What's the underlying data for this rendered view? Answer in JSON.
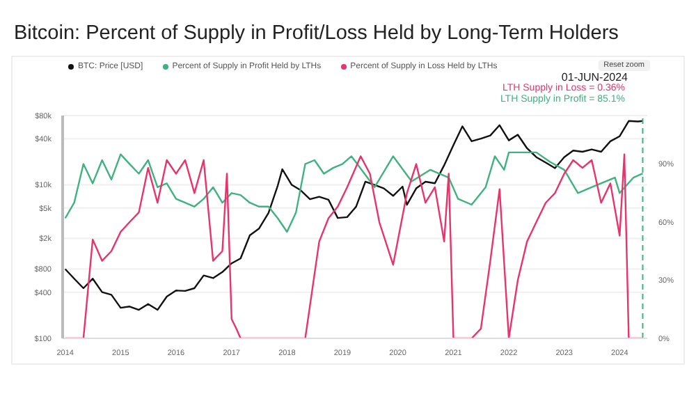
{
  "chart_data": {
    "type": "line",
    "title": "Bitcoin: Percent of Supply in Profit/Loss Held by Long-Term Holders",
    "xlim": [
      "2013-12-15",
      "2024-07-01"
    ],
    "xticks": [
      "2014",
      "2015",
      "2016",
      "2017",
      "2018",
      "2019",
      "2020",
      "2021",
      "2022",
      "2023",
      "2024"
    ],
    "ylim": [
      100,
      80000
    ],
    "yticks": [
      {
        "value": 100,
        "label": "$100"
      },
      {
        "value": 400,
        "label": "$400"
      },
      {
        "value": 800,
        "label": "$800"
      },
      {
        "value": 2000,
        "label": "$2k"
      },
      {
        "value": 5000,
        "label": "$5k"
      },
      {
        "value": 10000,
        "label": "$10k"
      },
      {
        "value": 40000,
        "label": "$40k"
      },
      {
        "value": 80000,
        "label": "$80k"
      }
    ],
    "log": "y",
    "y2lim": [
      0,
      115
    ],
    "y2ticks": [
      {
        "value": 0,
        "label": "0%"
      },
      {
        "value": 30,
        "label": "30%"
      },
      {
        "value": 60,
        "label": "60%"
      },
      {
        "value": 90,
        "label": "90%"
      }
    ],
    "grid": "y",
    "legend": "top",
    "marker": "none",
    "line_style": "solid",
    "series": [
      {
        "name": "BTC: Price [USD]",
        "color": "#111111",
        "x": [
          "2014-01",
          "2014-03",
          "2014-05",
          "2014-07",
          "2014-09",
          "2014-11",
          "2015-01",
          "2015-03",
          "2015-05",
          "2015-07",
          "2015-09",
          "2015-11",
          "2016-01",
          "2016-03",
          "2016-05",
          "2016-07",
          "2016-09",
          "2016-11",
          "2017-01",
          "2017-03",
          "2017-05",
          "2017-07",
          "2017-09",
          "2017-11",
          "2017-12",
          "2018-02",
          "2018-04",
          "2018-06",
          "2018-08",
          "2018-10",
          "2018-12",
          "2019-02",
          "2019-04",
          "2019-06",
          "2019-08",
          "2019-10",
          "2019-12",
          "2020-02",
          "2020-03",
          "2020-05",
          "2020-07",
          "2020-09",
          "2020-11",
          "2021-01",
          "2021-03",
          "2021-05",
          "2021-07",
          "2021-09",
          "2021-11",
          "2022-01",
          "2022-03",
          "2022-05",
          "2022-07",
          "2022-09",
          "2022-11",
          "2023-01",
          "2023-03",
          "2023-05",
          "2023-07",
          "2023-09",
          "2023-11",
          "2024-01",
          "2024-03",
          "2024-05",
          "2024-06"
        ],
        "values": [
          800,
          600,
          450,
          600,
          400,
          370,
          250,
          260,
          235,
          280,
          235,
          350,
          420,
          415,
          450,
          660,
          610,
          730,
          950,
          1100,
          2200,
          2700,
          4300,
          9800,
          16000,
          10000,
          8500,
          6500,
          7000,
          6400,
          3700,
          3800,
          5200,
          11000,
          10000,
          9000,
          7200,
          9500,
          5500,
          9000,
          11000,
          10500,
          18000,
          33000,
          58000,
          37000,
          40000,
          44000,
          60000,
          38000,
          45000,
          30000,
          23000,
          19500,
          16500,
          23000,
          28000,
          27000,
          29000,
          27000,
          37000,
          43000,
          68000,
          67000,
          68000
        ]
      },
      {
        "name": "Percent of Supply in Profit Held by LTHs",
        "color": "#3fb27f",
        "axis": "y2",
        "x": [
          "2014-01",
          "2014-03",
          "2014-05",
          "2014-07",
          "2014-09",
          "2014-11",
          "2015-01",
          "2015-03",
          "2015-05",
          "2015-07",
          "2015-09",
          "2015-11",
          "2016-01",
          "2016-03",
          "2016-05",
          "2016-07",
          "2016-09",
          "2016-11",
          "2017-01",
          "2017-03",
          "2017-05",
          "2017-07",
          "2017-09",
          "2017-11",
          "2018-01",
          "2018-03",
          "2018-05",
          "2018-07",
          "2018-09",
          "2018-11",
          "2019-01",
          "2019-03",
          "2019-08",
          "2019-12",
          "2020-04",
          "2020-08",
          "2020-12",
          "2021-02",
          "2021-05",
          "2021-08",
          "2021-10",
          "2021-12",
          "2022-01",
          "2022-07",
          "2022-10",
          "2023-01",
          "2023-04",
          "2023-07",
          "2023-12",
          "2024-01",
          "2024-04",
          "2024-06"
        ],
        "values": [
          62,
          70,
          90,
          80,
          92,
          82,
          95,
          90,
          85,
          92,
          78,
          80,
          72,
          70,
          68,
          72,
          78,
          70,
          75,
          74,
          70,
          68,
          68,
          62,
          55,
          65,
          90,
          92,
          85,
          88,
          90,
          94,
          78,
          94,
          81,
          87,
          83,
          72,
          69,
          78,
          94,
          87,
          96,
          96,
          91,
          87,
          75,
          78,
          83,
          75,
          83,
          85.1
        ]
      },
      {
        "name": "Percent of Supply in Loss Held by LTHs",
        "color": "#e8336b",
        "axis": "y2",
        "x": [
          "2014-01",
          "2014-05",
          "2014-07",
          "2014-09",
          "2014-11",
          "2015-01",
          "2015-03",
          "2015-05",
          "2015-07",
          "2015-09",
          "2015-11",
          "2016-01",
          "2016-03",
          "2016-05",
          "2016-07",
          "2016-09",
          "2016-11",
          "2016-12",
          "2017-01",
          "2017-02",
          "2017-03",
          "2018-05",
          "2018-08",
          "2018-10",
          "2018-12",
          "2019-02",
          "2019-05",
          "2019-07",
          "2019-09",
          "2019-12",
          "2020-03",
          "2020-05",
          "2020-07",
          "2020-09",
          "2020-11",
          "2020-12",
          "2021-01",
          "2021-05",
          "2021-07",
          "2021-09",
          "2021-11",
          "2022-01",
          "2022-03",
          "2022-05",
          "2022-07",
          "2022-09",
          "2022-11",
          "2023-01",
          "2023-03",
          "2023-05",
          "2023-07",
          "2023-09",
          "2023-11",
          "2024-01",
          "2024-02",
          "2024-03",
          "2024-06"
        ],
        "values": [
          0,
          0,
          51,
          40,
          45,
          55,
          60,
          65,
          88,
          70,
          92,
          85,
          92,
          75,
          92,
          40,
          45,
          85,
          10,
          5,
          0,
          0,
          50,
          62,
          68,
          78,
          94,
          85,
          60,
          38,
          75,
          90,
          70,
          78,
          50,
          85,
          0,
          0,
          5,
          40,
          77,
          0,
          30,
          50,
          60,
          70,
          75,
          85,
          92,
          88,
          92,
          70,
          80,
          53,
          95,
          0,
          0
        ]
      }
    ],
    "ref_lines": [
      {
        "axis": "x",
        "value": "2024-06-01",
        "color": "#3fb27f",
        "line_style": "dashed"
      }
    ],
    "annotations": [
      "01-JUN-2024",
      "LTH Supply in Loss = 0.36%",
      "LTH Supply in Profit = 85.1%",
      "Reset zoom"
    ]
  }
}
